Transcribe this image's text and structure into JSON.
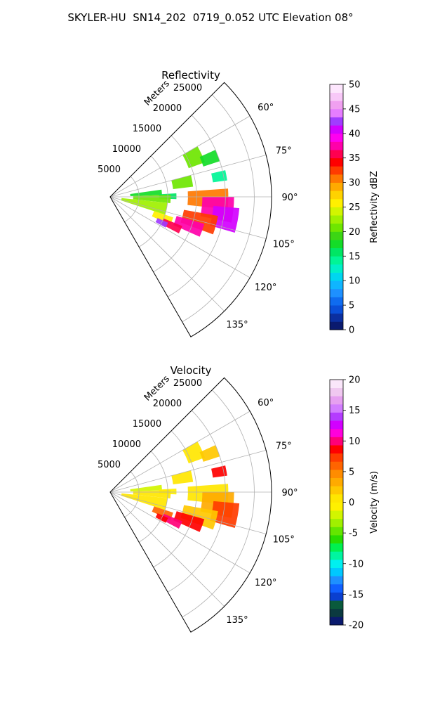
{
  "figure": {
    "title": "SKYLER-HU  SN14_202  0719_0.052 UTC Elevation 08°"
  },
  "chart_data": [
    {
      "type": "heatmap",
      "projection": "polar-sector",
      "title": "Reflectivity",
      "range_label": "Meters",
      "range_ticks": [
        5000,
        10000,
        15000,
        20000,
        25000
      ],
      "range_max": 28000,
      "azimuth_range": [
        45,
        150
      ],
      "azimuth_ticks": [
        60,
        75,
        90,
        105,
        120,
        135
      ],
      "azimuth_tick_labels": [
        "60°",
        "75°",
        "90°",
        "105°",
        "120°",
        "135°"
      ],
      "grid": true,
      "colorbar": {
        "label": "Reflectivity dBZ",
        "min": 0,
        "max": 50,
        "ticks": [
          0,
          5,
          10,
          15,
          20,
          25,
          30,
          35,
          40,
          45,
          50
        ],
        "colors": [
          "#0a1a6e",
          "#0b2fa0",
          "#0a4fd8",
          "#0f6cf0",
          "#1e90ff",
          "#0fb5ff",
          "#00d6f0",
          "#00f0c8",
          "#00f596",
          "#00e664",
          "#14dc28",
          "#3cd614",
          "#6ee600",
          "#a0f000",
          "#d2f500",
          "#fff000",
          "#ffd200",
          "#ffaa00",
          "#ff7800",
          "#ff3c00",
          "#ff0000",
          "#ff0050",
          "#ff00aa",
          "#ff00f0",
          "#d200ff",
          "#a03cff",
          "#e67dff",
          "#f0a0f0",
          "#f8c8f8",
          "#fde6fd"
        ],
        "position": "right"
      },
      "echoes": [
        {
          "az": [
            60,
            70
          ],
          "r": [
            14500,
            17500
          ],
          "value": 20
        },
        {
          "az": [
            66,
            72
          ],
          "r": [
            17000,
            20000
          ],
          "value": 18
        },
        {
          "az": [
            77,
            82
          ],
          "r": [
            18000,
            20500
          ],
          "value": 14
        },
        {
          "az": [
            75,
            83
          ],
          "r": [
            11000,
            14500
          ],
          "value": 20
        },
        {
          "az": [
            82,
            88
          ],
          "r": [
            3500,
            9000
          ],
          "value": 17
        },
        {
          "az": [
            87,
            92
          ],
          "r": [
            8500,
            11500
          ],
          "value": 15
        },
        {
          "az": [
            88,
            96
          ],
          "r": [
            4000,
            10500
          ],
          "value": 21
        },
        {
          "az": [
            96,
            108
          ],
          "r": [
            2000,
            10000
          ],
          "value": 22
        },
        {
          "az": [
            108,
            115
          ],
          "r": [
            8000,
            11500
          ],
          "value": 26
        },
        {
          "az": [
            86,
            96
          ],
          "r": [
            13500,
            20500
          ],
          "value": 30
        },
        {
          "az": [
            90,
            102
          ],
          "r": [
            16000,
            21500
          ],
          "value": 37
        },
        {
          "az": [
            95,
            106
          ],
          "r": [
            18000,
            22500
          ],
          "value": 40
        },
        {
          "az": [
            100,
            110
          ],
          "r": [
            13000,
            19000
          ],
          "value": 33
        },
        {
          "az": [
            106,
            114
          ],
          "r": [
            12000,
            17000
          ],
          "value": 38
        },
        {
          "az": [
            112,
            118
          ],
          "r": [
            10000,
            13500
          ],
          "value": 36
        },
        {
          "az": [
            114,
            119
          ],
          "r": [
            9000,
            11000
          ],
          "value": 42
        }
      ]
    },
    {
      "type": "heatmap",
      "projection": "polar-sector",
      "title": "Velocity",
      "range_label": "Meters",
      "range_ticks": [
        5000,
        10000,
        15000,
        20000,
        25000
      ],
      "range_max": 28000,
      "azimuth_range": [
        45,
        150
      ],
      "azimuth_ticks": [
        60,
        75,
        90,
        105,
        120,
        135
      ],
      "azimuth_tick_labels": [
        "60°",
        "75°",
        "90°",
        "105°",
        "120°",
        "135°"
      ],
      "grid": true,
      "colorbar": {
        "label": "Velocity (m/s)",
        "min": -20,
        "max": 20,
        "ticks": [
          -20,
          -15,
          -10,
          -5,
          0,
          5,
          10,
          15,
          20
        ],
        "colors": [
          "#0a1a6e",
          "#0b3a40",
          "#0a5a3c",
          "#0a3fd0",
          "#1060ff",
          "#1e90ff",
          "#00c8ff",
          "#00f0f0",
          "#00f5a0",
          "#00f050",
          "#28dc00",
          "#64e600",
          "#a0f000",
          "#d2f500",
          "#fff000",
          "#ffe600",
          "#ffc800",
          "#ffaa00",
          "#ff8c00",
          "#ff6400",
          "#ff3c00",
          "#ff0000",
          "#ff0078",
          "#ff00dc",
          "#d200ff",
          "#b43cff",
          "#d27dff",
          "#e6a0f0",
          "#f0c8f0",
          "#fae6fa"
        ],
        "position": "right"
      },
      "echoes": [
        {
          "az": [
            60,
            70
          ],
          "r": [
            14500,
            17500
          ],
          "value": 1
        },
        {
          "az": [
            66,
            72
          ],
          "r": [
            17000,
            20000
          ],
          "value": 2
        },
        {
          "az": [
            77,
            82
          ],
          "r": [
            18000,
            20500
          ],
          "value": 8
        },
        {
          "az": [
            75,
            83
          ],
          "r": [
            11000,
            14500
          ],
          "value": 1
        },
        {
          "az": [
            82,
            88
          ],
          "r": [
            3500,
            9000
          ],
          "value": -2
        },
        {
          "az": [
            87,
            92
          ],
          "r": [
            8500,
            11500
          ],
          "value": -1
        },
        {
          "az": [
            88,
            96
          ],
          "r": [
            4000,
            10500
          ],
          "value": 0
        },
        {
          "az": [
            96,
            108
          ],
          "r": [
            2000,
            10000
          ],
          "value": 1
        },
        {
          "az": [
            108,
            115
          ],
          "r": [
            8000,
            11500
          ],
          "value": 6
        },
        {
          "az": [
            86,
            96
          ],
          "r": [
            13500,
            20500
          ],
          "value": 1
        },
        {
          "az": [
            90,
            102
          ],
          "r": [
            16000,
            21500
          ],
          "value": 3
        },
        {
          "az": [
            95,
            106
          ],
          "r": [
            18000,
            22500
          ],
          "value": 7
        },
        {
          "az": [
            100,
            110
          ],
          "r": [
            13000,
            19000
          ],
          "value": 2
        },
        {
          "az": [
            106,
            114
          ],
          "r": [
            12000,
            17000
          ],
          "value": 9
        },
        {
          "az": [
            112,
            118
          ],
          "r": [
            10000,
            13500
          ],
          "value": 10
        },
        {
          "az": [
            114,
            119
          ],
          "r": [
            9000,
            11000
          ],
          "value": 8
        }
      ]
    }
  ]
}
